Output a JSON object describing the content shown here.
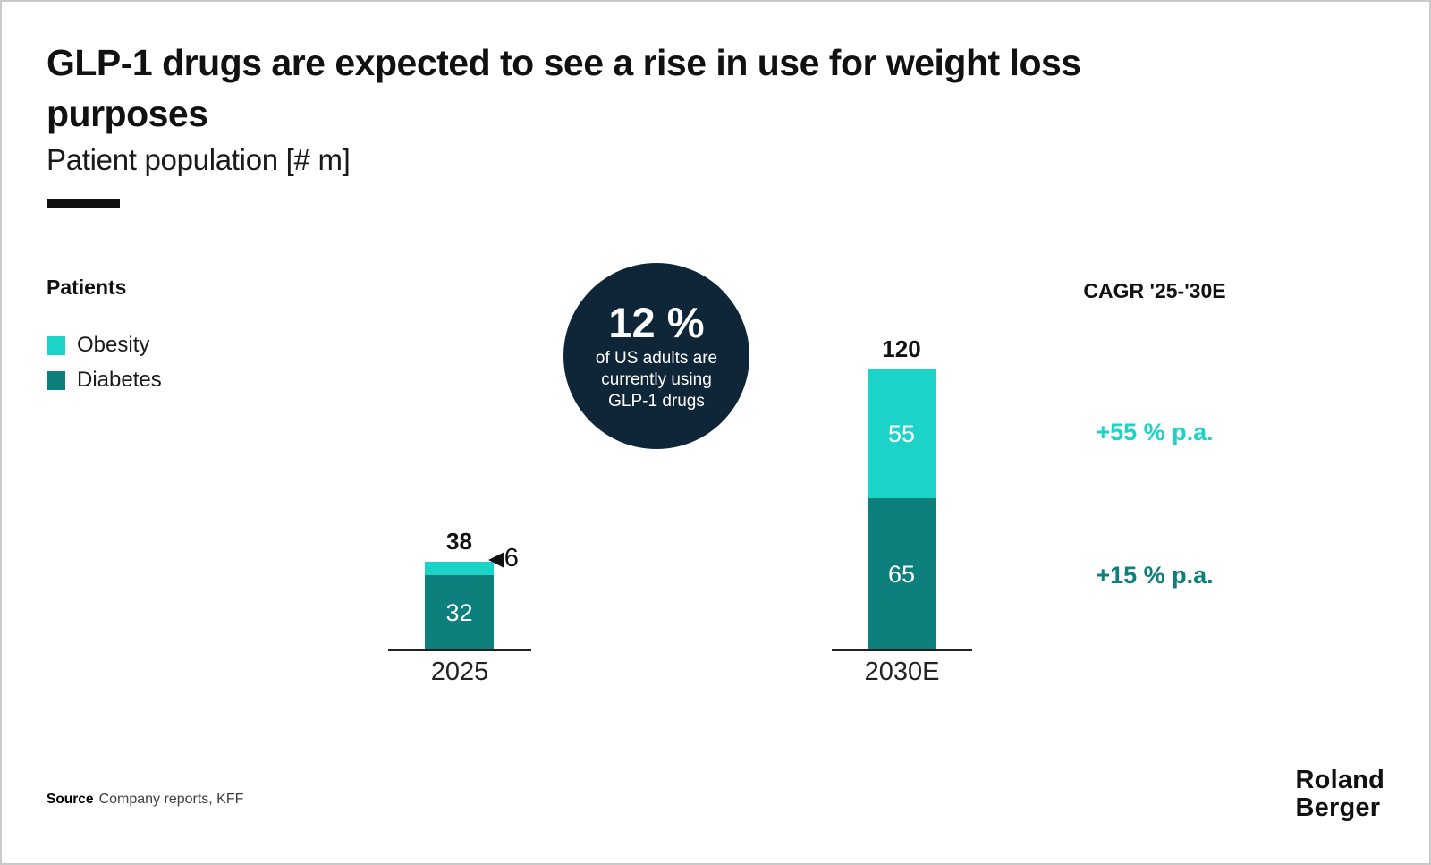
{
  "header": {
    "title": "GLP-1 drugs are expected to see a rise in use for weight loss purposes",
    "title_lines": [
      "GLP-1 drugs are expected to see a rise in use for weight loss",
      "purposes"
    ],
    "subtitle": "Patient population [# m]"
  },
  "legend": {
    "heading": "Patients",
    "items": [
      {
        "label": "Obesity",
        "color": "#1bd3c6"
      },
      {
        "label": "Diabetes",
        "color": "#0d7f7c"
      }
    ]
  },
  "callout": {
    "value": "12 %",
    "lines": [
      "of US adults are",
      "currently using",
      "GLP-1 drugs"
    ],
    "bg_color": "#0e2638",
    "text_color": "#ffffff"
  },
  "cagr": {
    "heading": "CAGR '25-'30E",
    "items": [
      {
        "label": "+55 % p.a.",
        "color": "#1bd3c6"
      },
      {
        "label": "+15 % p.a.",
        "color": "#0d7f7c"
      }
    ]
  },
  "chart_data": {
    "type": "bar",
    "stacked": true,
    "title": "Patient population [# m]",
    "value_unit": "# m patients",
    "categories": [
      "2025",
      "2030E"
    ],
    "series": [
      {
        "name": "Obesity",
        "color": "#1bd3c6",
        "values": [
          6,
          55
        ]
      },
      {
        "name": "Diabetes",
        "color": "#0d7f7c",
        "values": [
          32,
          65
        ]
      }
    ],
    "totals": [
      38,
      120
    ],
    "annotations": [
      {
        "category": "2025",
        "series": "Obesity",
        "marker": "◀",
        "text": "6"
      }
    ],
    "grid": false,
    "legend_position": "left"
  },
  "footer": {
    "source_label": "Source",
    "source_text": "Company reports, KFF",
    "logo_lines": [
      "Roland",
      "Berger"
    ]
  }
}
